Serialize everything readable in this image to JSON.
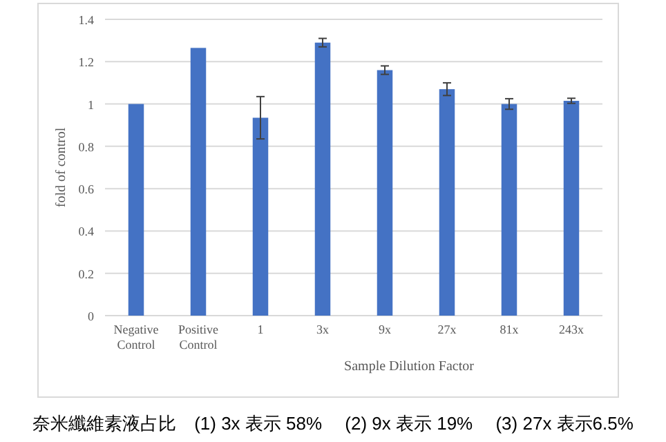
{
  "chart_data": {
    "type": "bar",
    "xlabel": "Sample Dilution Factor",
    "ylabel": "fold of control",
    "categories": [
      "Negative Control",
      "Positive Control",
      "1",
      "3x",
      "9x",
      "27x",
      "81x",
      "243x"
    ],
    "values": [
      1.0,
      1.265,
      0.935,
      1.29,
      1.16,
      1.07,
      1.0,
      1.015
    ],
    "errors": [
      null,
      null,
      0.1,
      0.02,
      0.02,
      0.03,
      0.025,
      0.012
    ],
    "color": "#4472c4",
    "ylim": [
      0,
      1.4
    ],
    "yticks": [
      0,
      0.2,
      0.4,
      0.6,
      0.8,
      1,
      1.2,
      1.4
    ],
    "grid": "y",
    "annotations": [
      "奈米纖維素液占比　(1) 3x 表示 58%　 (2) 9x 表示 19%　 (3) 27x 表示6.5%"
    ]
  }
}
